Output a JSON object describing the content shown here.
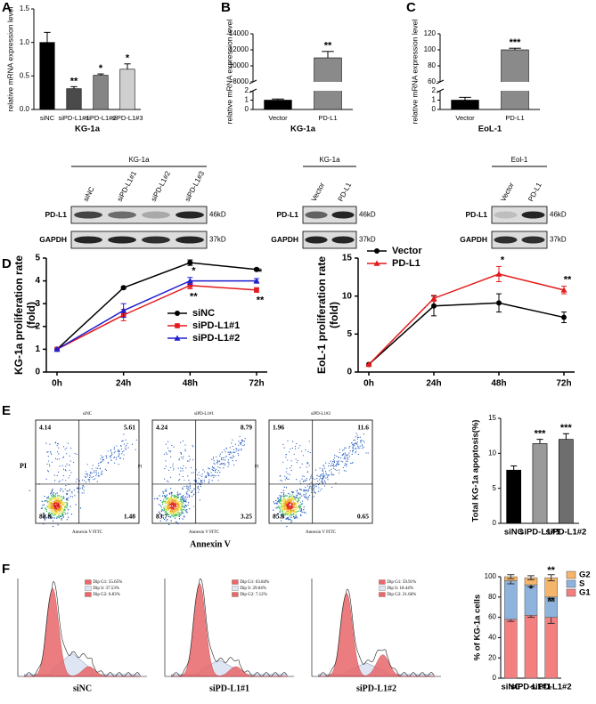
{
  "chart_data": [
    {
      "type": "bar",
      "panel": "A",
      "ylabel": "relative mRNA expression level",
      "xlabel": "KG-1a",
      "categories": [
        "siNC",
        "siPD-L1#1",
        "siPD-L1#2",
        "siPD-L1#3"
      ],
      "values": [
        1.0,
        0.31,
        0.51,
        0.6
      ],
      "errors": [
        0.15,
        0.03,
        0.02,
        0.08
      ],
      "significance": [
        null,
        "**",
        "*",
        "*"
      ],
      "colors": [
        "#000000",
        "#4a4a4a",
        "#858585",
        "#cfcfcf"
      ],
      "ylim": [
        0,
        1.5
      ],
      "yticks": [
        {
          "value": 0,
          "label": "0.0"
        },
        {
          "value": 0.5,
          "label": "0.5"
        },
        {
          "value": 1.0,
          "label": "1.0"
        },
        {
          "value": 1.5,
          "label": "1.5"
        }
      ]
    },
    {
      "type": "bar",
      "panel": "B",
      "ylabel": "relative mRNA expression level",
      "xlabel": "KG-1a",
      "categories": [
        "Vector",
        "PD-L1"
      ],
      "values": [
        1,
        11000
      ],
      "errors": [
        0.12,
        800
      ],
      "significance": [
        null,
        "**"
      ],
      "colors": [
        "#000000",
        "#8a8a8a"
      ],
      "segments": [
        {
          "ylim": [
            0,
            2
          ],
          "yticks": [
            0,
            1,
            2
          ]
        },
        {
          "ylim": [
            8000,
            14000
          ],
          "yticks": [
            8000,
            10000,
            12000,
            14000
          ]
        }
      ]
    },
    {
      "type": "bar",
      "panel": "C",
      "ylabel": "relative mRNA expression level",
      "xlabel": "EoL-1",
      "categories": [
        "Vector",
        "PD-L1"
      ],
      "values": [
        1,
        100
      ],
      "errors": [
        0.3,
        2
      ],
      "significance": [
        null,
        "***"
      ],
      "colors": [
        "#000000",
        "#8a8a8a"
      ],
      "segments": [
        {
          "ylim": [
            0,
            2
          ],
          "yticks": [
            0,
            1,
            2
          ]
        },
        {
          "ylim": [
            60,
            120
          ],
          "yticks": [
            60,
            80,
            100,
            120
          ]
        }
      ]
    },
    {
      "type": "line",
      "panel": "D",
      "ylabel": [
        "KG-1a proliferation rate",
        "(fold)"
      ],
      "categories": [
        "0h",
        "24h",
        "48h",
        "72h"
      ],
      "ylim": [
        0,
        5
      ],
      "yticks": [
        0,
        1,
        2,
        3,
        4,
        5
      ],
      "legend": "lower right",
      "series": [
        {
          "name": "siNC",
          "color": "#000000",
          "marker": "circle",
          "values": [
            1,
            3.7,
            4.8,
            4.5
          ],
          "errors": [
            0,
            0.05,
            0.12,
            0.05
          ]
        },
        {
          "name": "siPD-L1#1",
          "color": "#e41a1c",
          "marker": "square",
          "values": [
            1,
            2.5,
            3.8,
            3.6
          ],
          "errors": [
            0,
            0.25,
            0.15,
            0.1
          ],
          "significance": [
            null,
            null,
            "**",
            "**"
          ],
          "label_position": "below"
        },
        {
          "name": "siPD-L1#2",
          "color": "#1f1fd0",
          "marker": "triangle",
          "values": [
            1,
            2.7,
            4.0,
            4.0
          ],
          "errors": [
            0,
            0.3,
            0.15,
            0.1
          ],
          "significance": [
            null,
            null,
            "*",
            "*"
          ],
          "label_position": "above"
        }
      ]
    },
    {
      "type": "line",
      "ylabel": [
        "EoL-1 proliferation rate",
        "(fold)"
      ],
      "categories": [
        "0h",
        "24h",
        "48h",
        "72h"
      ],
      "ylim": [
        0,
        15
      ],
      "yticks": [
        0,
        5,
        10,
        15
      ],
      "legend": "upper left",
      "series": [
        {
          "name": "Vector",
          "color": "#000000",
          "marker": "circle",
          "values": [
            1,
            8.7,
            9.1,
            7.2
          ],
          "errors": [
            0,
            1.3,
            1.2,
            0.7
          ]
        },
        {
          "name": "PD-L1",
          "color": "#e41a1c",
          "marker": "triangle",
          "values": [
            1,
            9.7,
            12.9,
            10.8
          ],
          "errors": [
            0,
            0.4,
            1.0,
            0.5
          ],
          "significance": [
            null,
            null,
            "*",
            "**"
          ],
          "label_position": "above"
        }
      ]
    },
    {
      "type": "bar",
      "ylabel": "Total KG-1a apoptosis(%)",
      "categories": [
        "siNC",
        "siPD-L1#1",
        "siPD-L1#2"
      ],
      "values": [
        7.6,
        11.4,
        12.0
      ],
      "errors": [
        0.6,
        0.6,
        0.8
      ],
      "significance": [
        null,
        "***",
        "***"
      ],
      "colors": [
        "#000000",
        "#9a9a9a",
        "#6e6e6e"
      ],
      "ylim": [
        0,
        15
      ],
      "yticks": [
        0,
        5,
        10,
        15
      ]
    },
    {
      "type": "stacked_bar",
      "ylabel": "% of KG-1a cells",
      "categories": [
        "siNC",
        "siPD-L1#1",
        "siPD-L1#2"
      ],
      "ylim": [
        0,
        100
      ],
      "yticks": [
        0,
        20,
        40,
        60,
        80,
        100
      ],
      "series": [
        {
          "name": "G1",
          "color": "#f47f7f",
          "values": [
            58,
            62,
            60
          ],
          "errors": [
            2,
            2,
            6
          ]
        },
        {
          "name": "S",
          "color": "#8eb3dc",
          "values": [
            38,
            30,
            20
          ],
          "errors": [
            3,
            2,
            4
          ],
          "significance": [
            null,
            "*",
            "**"
          ]
        },
        {
          "name": "G2",
          "color": "#f5b56a",
          "values": [
            4,
            7,
            19
          ],
          "errors": [
            2,
            2,
            3
          ],
          "significance": [
            null,
            null,
            "**"
          ]
        }
      ]
    }
  ],
  "blots": [
    {
      "title": "KG-1a",
      "lanes": [
        "siNC",
        "siPD-L1#1",
        "siPD-L1#2",
        "siPD-L1#3"
      ],
      "rows": [
        "PD-L1",
        "GAPDH"
      ],
      "sizes": [
        "46kD",
        "37kD"
      ]
    },
    {
      "title": "KG-1a",
      "lanes": [
        "Vector",
        "PD-L1"
      ],
      "rows": [
        "PD-L1",
        "GAPDH"
      ],
      "sizes": [
        "46kD",
        "37kD"
      ]
    },
    {
      "title": "Eol-1",
      "lanes": [
        "Vector",
        "PD-L1"
      ],
      "rows": [
        "PD-L1",
        "GAPDH"
      ],
      "sizes": [
        "46kD",
        "37kD"
      ]
    }
  ],
  "flow": {
    "panel": "E",
    "xlabel": "Annexin V",
    "plot_xlabel": "Annexin V FITC",
    "plot_ylabel": "PI",
    "plots": [
      {
        "title": "siNC",
        "quadrants": [
          "4.14",
          "5.61",
          "88.8",
          "1.48"
        ]
      },
      {
        "title": "siPD-L1#1",
        "quadrants": [
          "4.24",
          "8.79",
          "83.7",
          "3.25"
        ]
      },
      {
        "title": "siPD-L1#2",
        "quadrants": [
          "1.96",
          "11.6",
          "85.8",
          "0.65"
        ]
      }
    ]
  },
  "cell_cycle": {
    "panel": "F",
    "plots": [
      {
        "name": "siNC",
        "legend": [
          "Dip G1: 55.65%",
          "Dip S: 37.53%",
          "Dip G2: 6.83%"
        ]
      },
      {
        "name": "siPD-L1#1",
        "legend": [
          "Dip G1: 63.84%",
          "Dip S: 29.04%",
          "Dip G2: 7.12%"
        ]
      },
      {
        "name": "siPD-L1#2",
        "legend": [
          "Dip G1: 59.91%",
          "Dip S: 18.44%",
          "Dip G2: 21.66%"
        ]
      }
    ]
  }
}
